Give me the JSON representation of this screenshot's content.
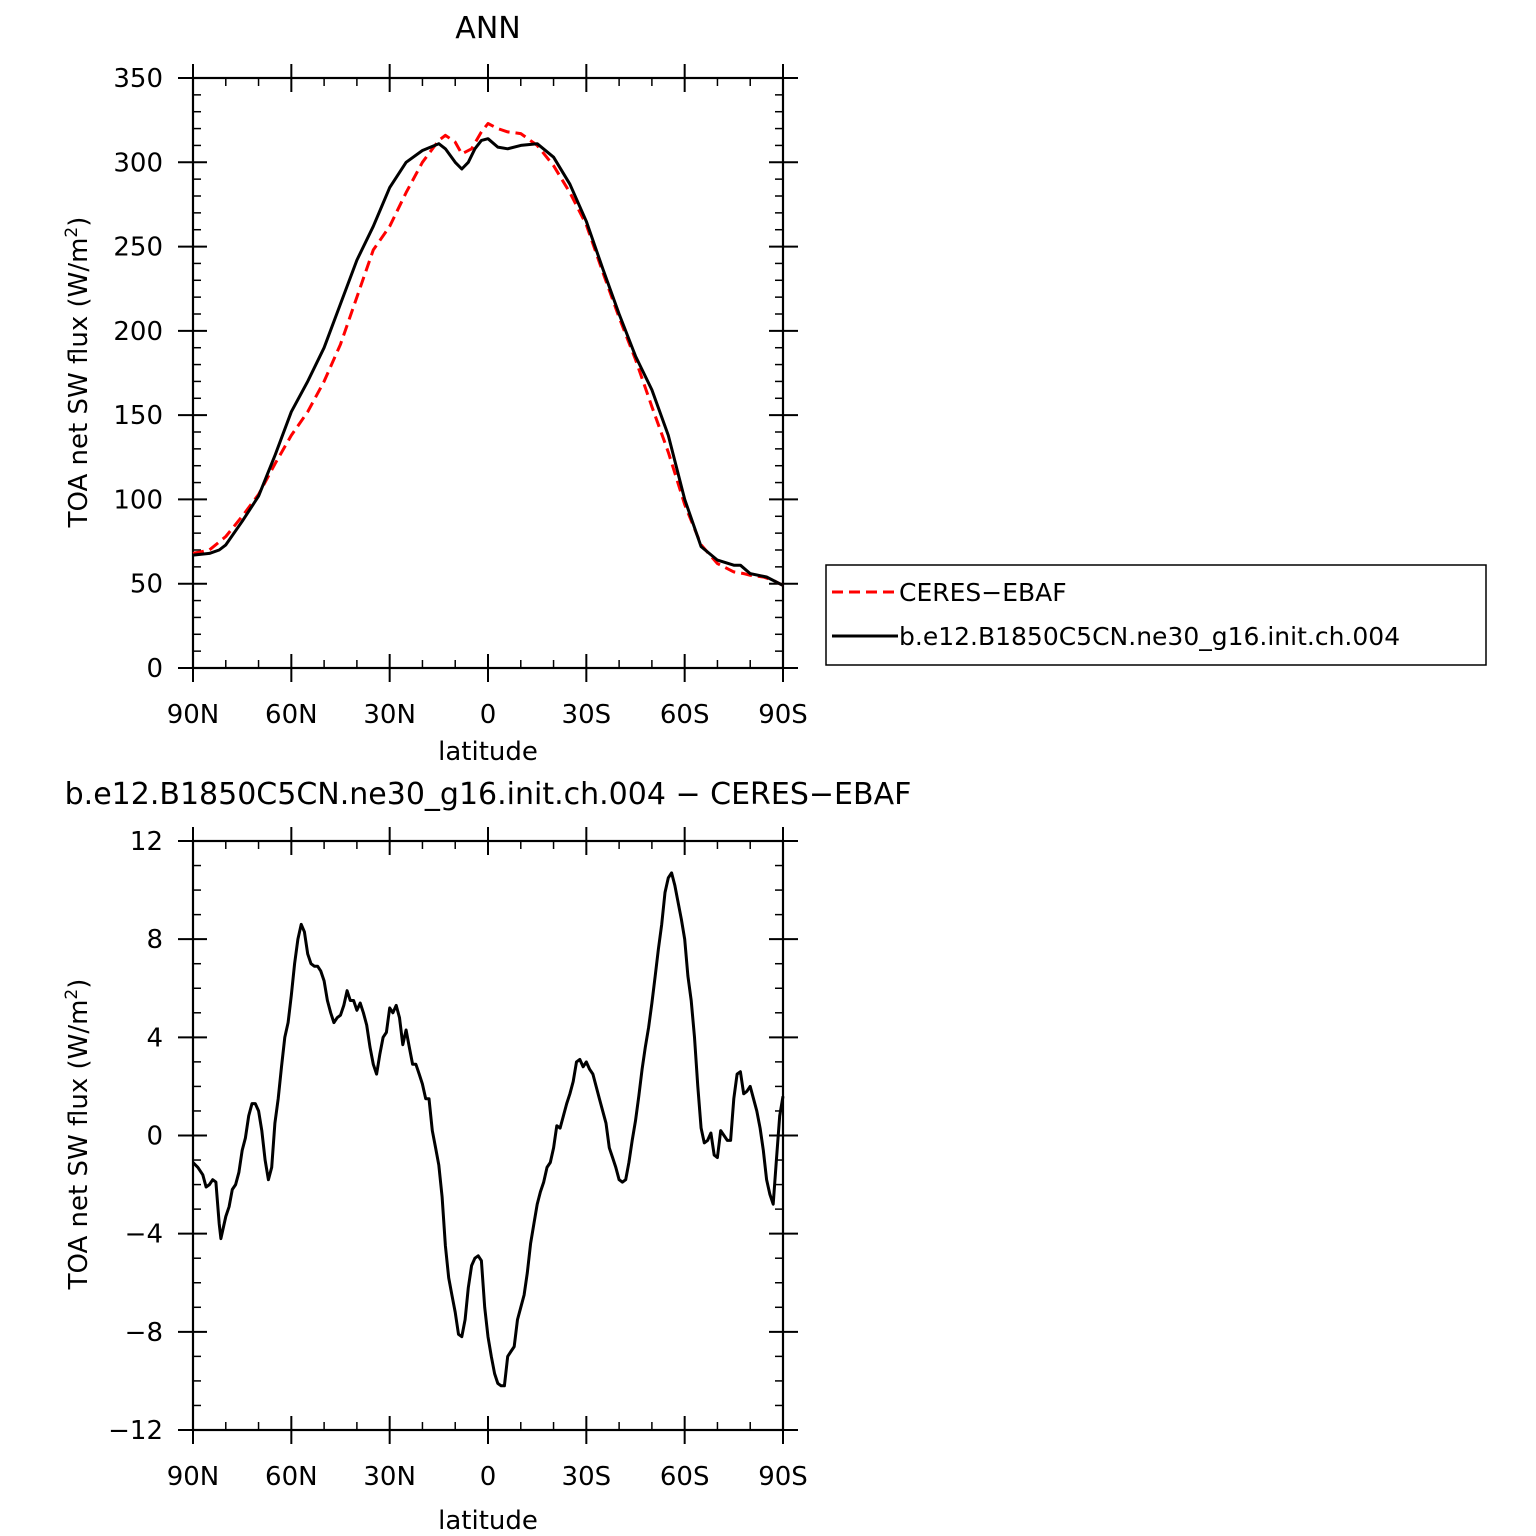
{
  "chart_data": [
    {
      "type": "line",
      "title": "ANN",
      "xlabel": "latitude",
      "ylabel": "TOA net SW flux (W/m",
      "ylabel_sup": "2",
      "ylabel_end": ")",
      "xlim": [
        90,
        -90
      ],
      "ylim": [
        0,
        350
      ],
      "x_ticks": [
        90,
        60,
        30,
        0,
        -30,
        -60,
        -90
      ],
      "x_tick_labels": [
        "90N",
        "60N",
        "30N",
        "0",
        "30S",
        "60S",
        "90S"
      ],
      "y_ticks": [
        0,
        50,
        100,
        150,
        200,
        250,
        300,
        350
      ],
      "y_tick_labels": [
        "0",
        "50",
        "100",
        "150",
        "200",
        "250",
        "300",
        "350"
      ],
      "grid": false,
      "legend": "right",
      "series": [
        {
          "name": "CERES−EBAF",
          "color": "#ff0000",
          "dash": "dashed",
          "x": [
            90,
            85,
            80,
            75,
            70,
            65,
            60,
            55,
            50,
            45,
            40,
            35,
            30,
            25,
            20,
            15,
            13,
            10,
            8,
            5,
            2,
            0,
            -3,
            -6,
            -10,
            -15,
            -20,
            -25,
            -30,
            -35,
            -40,
            -45,
            -50,
            -55,
            -60,
            -65,
            -70,
            -75,
            -78,
            -80,
            -84,
            -87,
            -90
          ],
          "y": [
            68,
            70,
            78,
            90,
            103,
            121,
            138,
            152,
            170,
            192,
            220,
            248,
            262,
            282,
            300,
            313,
            316,
            312,
            305,
            308,
            318,
            323,
            320,
            318,
            317,
            310,
            298,
            282,
            263,
            235,
            208,
            183,
            155,
            128,
            97,
            73,
            62,
            57,
            56,
            55,
            54,
            52,
            49
          ]
        },
        {
          "name": "b.e12.B1850C5CN.ne30_g16.init.ch.004",
          "color": "#000000",
          "dash": "solid",
          "x": [
            90,
            85,
            82,
            80,
            75,
            70,
            65,
            60,
            55,
            50,
            45,
            40,
            35,
            30,
            25,
            20,
            15,
            13,
            10,
            8,
            6,
            4,
            2,
            0,
            -3,
            -6,
            -10,
            -15,
            -20,
            -25,
            -30,
            -35,
            -40,
            -45,
            -50,
            -55,
            -60,
            -65,
            -70,
            -75,
            -77,
            -80,
            -85,
            -90
          ],
          "y": [
            67,
            68,
            70,
            73,
            87,
            102,
            126,
            152,
            170,
            190,
            216,
            242,
            262,
            285,
            300,
            307,
            311,
            308,
            300,
            296,
            300,
            308,
            313,
            314,
            309,
            308,
            310,
            311,
            303,
            287,
            265,
            237,
            210,
            185,
            165,
            138,
            100,
            72,
            64,
            61,
            61,
            56,
            54,
            49
          ]
        }
      ]
    },
    {
      "type": "line",
      "title": "b.e12.B1850C5CN.ne30_g16.init.ch.004 − CERES−EBAF",
      "xlabel": "latitude",
      "ylabel": "TOA net SW flux (W/m",
      "ylabel_sup": "2",
      "ylabel_end": ")",
      "xlim": [
        90,
        -90
      ],
      "ylim": [
        -12,
        12
      ],
      "x_ticks": [
        90,
        60,
        30,
        0,
        -30,
        -60,
        -90
      ],
      "x_tick_labels": [
        "90N",
        "60N",
        "30N",
        "0",
        "30S",
        "60S",
        "90S"
      ],
      "y_ticks": [
        -12,
        -8,
        -4,
        0,
        4,
        8,
        12
      ],
      "y_tick_labels": [
        "−12",
        "−8",
        "−4",
        "0",
        "4",
        "8",
        "12"
      ],
      "grid": false,
      "series": [
        {
          "name": "",
          "color": "#000000",
          "dash": "solid",
          "x": [
            90,
            88.5,
            87,
            86,
            85,
            84,
            83,
            82,
            81.5,
            80,
            79,
            78,
            77,
            76,
            75,
            74,
            73,
            72,
            71,
            70,
            69,
            68,
            67,
            66,
            65,
            64,
            63,
            62,
            61,
            60,
            59,
            58,
            57,
            56,
            55,
            54,
            53,
            52,
            51,
            50,
            49,
            48,
            47,
            46,
            45,
            44,
            43,
            42,
            41,
            40,
            39,
            38,
            37,
            36,
            35,
            34,
            33,
            32,
            31,
            30,
            29,
            28,
            27,
            26,
            25,
            24,
            23,
            22,
            21,
            20,
            19,
            18,
            17,
            16,
            15,
            14,
            13,
            12,
            11,
            10,
            9,
            8,
            7,
            6,
            5,
            4,
            3,
            2,
            1,
            0,
            -1,
            -2,
            -3,
            -4,
            -5,
            -6,
            -7,
            -8,
            -9,
            -10,
            -11,
            -12,
            -13,
            -14,
            -15,
            -16,
            -17,
            -18,
            -19,
            -20,
            -21,
            -22,
            -23,
            -24,
            -25,
            -26,
            -27,
            -28,
            -29,
            -30,
            -31,
            -32,
            -34,
            -36,
            -37,
            -38,
            -39,
            -40,
            -41,
            -42,
            -43,
            -44,
            -45,
            -46,
            -47,
            -48,
            -49,
            -50,
            -51,
            -52,
            -53,
            -54,
            -55,
            -56,
            -57,
            -58,
            -59,
            -60,
            -61,
            -62,
            -63,
            -64,
            -65,
            -66,
            -67,
            -68,
            -69,
            -70,
            -71,
            -72,
            -73,
            -74,
            -75,
            -76,
            -77,
            -78,
            -79,
            -80,
            -81,
            -82,
            -83,
            -84,
            -85,
            -86,
            -87,
            -88,
            -89,
            -90
          ],
          "y": [
            -1.1,
            -1.3,
            -1.6,
            -2.1,
            -2.0,
            -1.8,
            -1.9,
            -3.6,
            -4.2,
            -3.3,
            -2.9,
            -2.2,
            -2.0,
            -1.5,
            -0.6,
            -0.1,
            0.8,
            1.3,
            1.3,
            1.0,
            0.2,
            -1.0,
            -1.8,
            -1.3,
            0.5,
            1.5,
            2.8,
            4.0,
            4.6,
            5.7,
            7.0,
            8.0,
            8.6,
            8.3,
            7.4,
            7.0,
            6.9,
            6.9,
            6.7,
            6.3,
            5.5,
            5.0,
            4.6,
            4.8,
            4.9,
            5.3,
            5.9,
            5.5,
            5.5,
            5.1,
            5.4,
            5.0,
            4.5,
            3.6,
            2.9,
            2.5,
            3.3,
            4.0,
            4.2,
            5.2,
            5.0,
            5.3,
            4.8,
            3.7,
            4.3,
            3.6,
            2.9,
            2.9,
            2.5,
            2.1,
            1.5,
            1.5,
            0.2,
            -0.5,
            -1.2,
            -2.5,
            -4.5,
            -5.8,
            -6.5,
            -7.2,
            -8.1,
            -8.2,
            -7.5,
            -6.2,
            -5.3,
            -5.0,
            -4.9,
            -5.1,
            -7.0,
            -8.2,
            -9.0,
            -9.7,
            -10.1,
            -10.2,
            -10.2,
            -9.0,
            -8.8,
            -8.6,
            -7.5,
            -7.0,
            -6.5,
            -5.6,
            -4.4,
            -3.6,
            -2.8,
            -2.3,
            -1.9,
            -1.3,
            -1.1,
            -0.5,
            0.4,
            0.3,
            0.8,
            1.3,
            1.7,
            2.2,
            3.0,
            3.1,
            2.8,
            3.0,
            2.7,
            2.5,
            1.5,
            0.5,
            -0.5,
            -0.9,
            -1.3,
            -1.8,
            -1.9,
            -1.8,
            -1.1,
            -0.2,
            0.6,
            1.6,
            2.7,
            3.6,
            4.4,
            5.4,
            6.5,
            7.6,
            8.6,
            9.9,
            10.5,
            10.7,
            10.2,
            9.5,
            8.8,
            8.0,
            6.5,
            5.5,
            4.0,
            2.0,
            0.3,
            -0.3,
            -0.2,
            0.1,
            -0.8,
            -0.9,
            0.2,
            0.0,
            -0.2,
            -0.2,
            1.5,
            2.5,
            2.6,
            1.7,
            1.8,
            2.0,
            1.5,
            1.0,
            0.3,
            -0.6,
            -1.8,
            -2.4,
            -2.8,
            -1.0,
            0.8,
            1.6
          ]
        }
      ]
    }
  ]
}
